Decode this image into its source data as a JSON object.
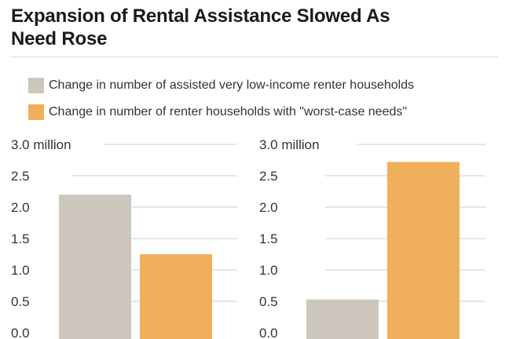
{
  "title": {
    "line1": "Expansion of Rental Assistance Slowed As",
    "line2": "Need Rose"
  },
  "legend": [
    {
      "label": "Change in number of assisted very low-income renter households",
      "color": "#ccc6bd"
    },
    {
      "label": "Change in number of renter households with \"worst-case needs\"",
      "color": "#f0af5b"
    }
  ],
  "colors": {
    "grid": "#cccccc",
    "axis": "#555555"
  },
  "chart_data": [
    {
      "type": "bar",
      "title": "",
      "xlabel": "",
      "ylabel": "",
      "unit": "million",
      "ylim": [
        0,
        3
      ],
      "ticks": [
        "0.0",
        "0.5",
        "1.0",
        "1.5",
        "2.0",
        "2.5",
        "3.0 million"
      ],
      "series": [
        {
          "name": "Change in number of assisted very low-income renter households",
          "values": [
            2.2
          ]
        },
        {
          "name": "Change in number of renter households with \"worst-case needs\"",
          "values": [
            1.25
          ]
        }
      ]
    },
    {
      "type": "bar",
      "title": "",
      "xlabel": "",
      "ylabel": "",
      "unit": "million",
      "ylim": [
        0,
        3
      ],
      "ticks": [
        "0.0",
        "0.5",
        "1.0",
        "1.5",
        "2.0",
        "2.5",
        "3.0 million"
      ],
      "series": [
        {
          "name": "Change in number of assisted very low-income renter households",
          "values": [
            0.53
          ]
        },
        {
          "name": "Change in number of renter households with \"worst-case needs\"",
          "values": [
            2.72
          ]
        }
      ]
    }
  ]
}
